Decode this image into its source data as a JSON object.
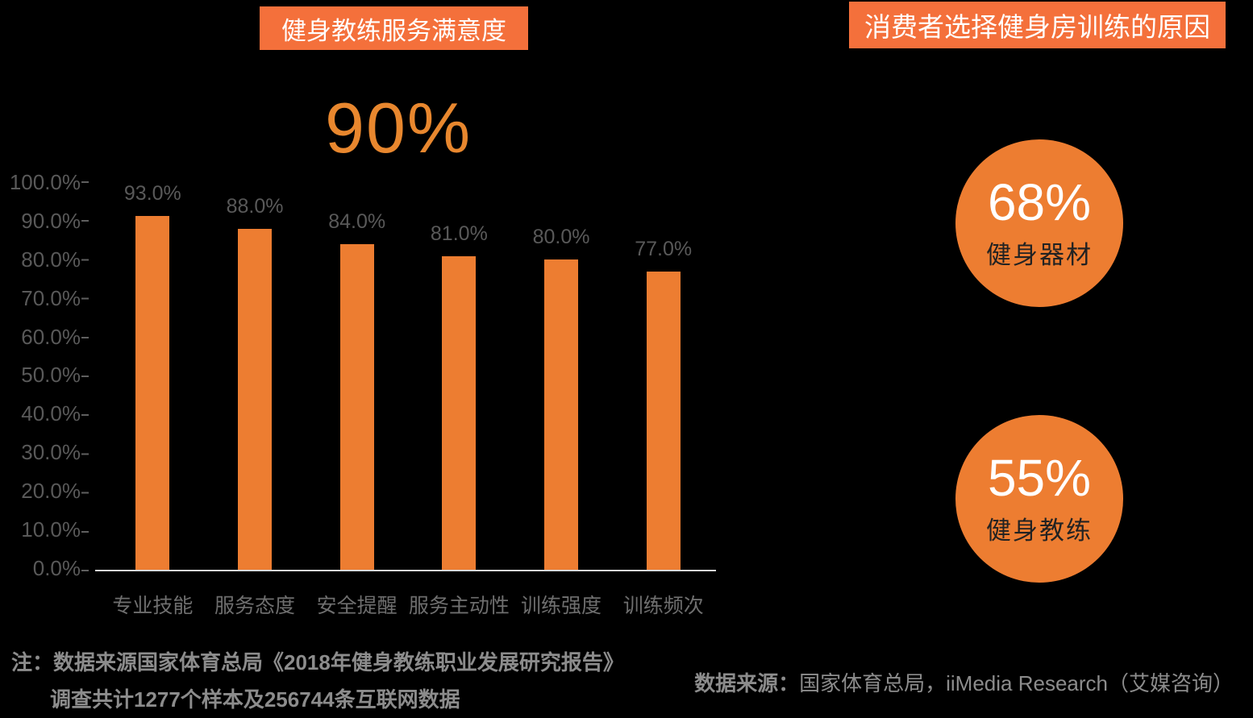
{
  "colors": {
    "background": "#000000",
    "badge_orange": "#F4703B",
    "bar_orange": "#ED7D31",
    "highlight_orange": "#E8872E",
    "axis_line_gray": "#D9D9D9",
    "label_gray": "#595959",
    "note_gray": "#8C8C8C"
  },
  "chart_data": [
    {
      "type": "bar",
      "title": "健身教练服务满意度",
      "highlight_label": "90%",
      "categories": [
        "专业技能",
        "服务态度",
        "安全提醒",
        "服务主动性",
        "训练强度",
        "训练频次"
      ],
      "values": [
        93.0,
        88.0,
        84.0,
        81.0,
        80.0,
        77.0
      ],
      "value_labels": [
        "93.0%",
        "88.0%",
        "84.0%",
        "81.0%",
        "80.0%",
        "77.0%"
      ],
      "xlabel": "",
      "ylabel": "",
      "ylim": [
        0,
        100
      ],
      "ytick_labels": [
        "100.0%",
        "90.0%",
        "80.0%",
        "70.0%",
        "60.0%",
        "50.0%",
        "40.0%",
        "30.0%",
        "20.0%",
        "10.0%",
        "0.0%"
      ],
      "grid": false,
      "legend": "none",
      "bar_color": "#ED7D31"
    },
    {
      "type": "pie",
      "variant": "bubble-circles",
      "title": "消费者选择健身房训练的原因",
      "categories": [
        "健身器材",
        "健身教练"
      ],
      "values": [
        68,
        55
      ],
      "value_labels": [
        "68%",
        "55%"
      ],
      "circle_color": "#ED7D31"
    }
  ],
  "footnote": {
    "prefix": "注：",
    "line1": "数据来源国家体育总局《2018年健身教练职业发展研究报告》",
    "line2": "调查共计1277个样本及256744条互联网数据"
  },
  "source": {
    "prefix": "数据来源：",
    "text": "国家体育总局，iiMedia Research（艾媒咨询）"
  }
}
